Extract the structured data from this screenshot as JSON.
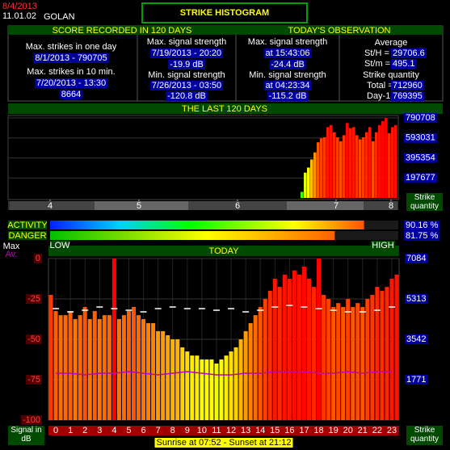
{
  "header": {
    "date": "8/4/2013",
    "version": "11.01.02",
    "station": "GOLAN",
    "title": "STRIKE HISTOGRAM"
  },
  "score_120_days": {
    "heading": "SCORE RECORDED IN 120 DAYS",
    "max_strikes_day": {
      "label": "Max. strikes in one day",
      "value": "8/1/2013 - 790705"
    },
    "max_strikes_10min": {
      "label": "Max. strikes in 10 min.",
      "when": "7/20/2013 - 13:30",
      "value": "8664"
    },
    "max_signal": {
      "label": "Max. signal strength",
      "when": "7/19/2013 - 20:20",
      "value": "-19.9 dB"
    },
    "min_signal": {
      "label": "Min. signal strength",
      "when": "7/26/2013 - 03:50",
      "value": "-120.8 dB"
    }
  },
  "today_observation": {
    "heading": "TODAY'S OBSERVATION",
    "max_signal": {
      "label": "Max. signal strength",
      "when": "at 15:43:06",
      "value": "-24.4 dB"
    },
    "min_signal": {
      "label": "Min. signal strength",
      "when": "at 04:23:34",
      "value": "-115.2 dB"
    },
    "average": {
      "label": "Average",
      "per_hour_label": "St/H =",
      "per_hour": "29706.6",
      "per_min_label": "St/m =",
      "per_min": "495.1"
    },
    "quantity": {
      "label": "Strike quantity",
      "total_label": "Total  =",
      "total": "712960",
      "day1_label": "Day-1=",
      "day1": "769395"
    }
  },
  "levels": {
    "xlim": [
      0,
      100
    ],
    "low": "LOW",
    "high": "HIGH",
    "items": [
      {
        "name": "ACTIVITY",
        "value": 90.16,
        "value_label": "90.16 %"
      },
      {
        "name": "DANGER",
        "value": 81.75,
        "value_label": "81.75 %"
      }
    ]
  },
  "sun": "Sunrise at 07:52  -  Sunset at 21:12",
  "chart_data": [
    {
      "type": "bar",
      "title": "THE LAST 120 DAYS",
      "y_axis_label": "Strike quantity",
      "grid": true,
      "x": [
        90,
        91,
        92,
        93,
        94,
        95,
        96,
        97,
        98,
        99,
        100,
        101,
        102,
        103,
        104,
        105,
        106,
        107,
        108,
        109,
        110,
        111,
        112,
        113,
        114,
        115,
        116,
        117,
        118,
        119
      ],
      "values": [
        60000,
        250000,
        300000,
        380000,
        450000,
        550000,
        590000,
        600000,
        700000,
        720000,
        650000,
        600000,
        560000,
        620000,
        740000,
        690000,
        700000,
        620000,
        580000,
        600000,
        650000,
        700000,
        560000,
        650000,
        720000,
        760000,
        790705,
        640000,
        700000,
        720000
      ],
      "xlim": [
        0,
        120
      ],
      "xticks": [
        {
          "value": 12.5,
          "label": "4"
        },
        {
          "value": 40,
          "label": "5"
        },
        {
          "value": 70.5,
          "label": "6"
        },
        {
          "value": 101,
          "label": "7"
        },
        {
          "value": 118,
          "label": "8"
        }
      ],
      "ylim": [
        0,
        790708
      ],
      "yticks": [
        197677,
        395354,
        593031,
        790708
      ]
    },
    {
      "type": "bar",
      "title": "TODAY",
      "y_axis_label": "Signal in dB",
      "y2_axis_label": "Strike quantity",
      "grid": true,
      "xlim": [
        0,
        1440
      ],
      "xticks": [
        {
          "value": 30,
          "label": "0"
        },
        {
          "value": 90,
          "label": "1"
        },
        {
          "value": 150,
          "label": "2"
        },
        {
          "value": 210,
          "label": "3"
        },
        {
          "value": 270,
          "label": "4"
        },
        {
          "value": 330,
          "label": "5"
        },
        {
          "value": 390,
          "label": "6"
        },
        {
          "value": 450,
          "label": "7"
        },
        {
          "value": 510,
          "label": "8"
        },
        {
          "value": 570,
          "label": "9"
        },
        {
          "value": 630,
          "label": "10"
        },
        {
          "value": 690,
          "label": "11"
        },
        {
          "value": 750,
          "label": "12"
        },
        {
          "value": 810,
          "label": "13"
        },
        {
          "value": 870,
          "label": "14"
        },
        {
          "value": 930,
          "label": "15"
        },
        {
          "value": 990,
          "label": "16"
        },
        {
          "value": 1050,
          "label": "17"
        },
        {
          "value": 1110,
          "label": "18"
        },
        {
          "value": 1170,
          "label": "19"
        },
        {
          "value": 1230,
          "label": "20"
        },
        {
          "value": 1290,
          "label": "21"
        },
        {
          "value": 1350,
          "label": "22"
        },
        {
          "value": 1410,
          "label": "23"
        }
      ],
      "ylim": [
        -100,
        0
      ],
      "yticks": [
        0,
        -25,
        -50,
        -75,
        -100
      ],
      "y2lim": [
        0,
        7084
      ],
      "y2ticks": [
        1771,
        3542,
        5313,
        7084
      ],
      "series": [
        {
          "axis": "y2",
          "x": [
            0,
            20,
            40,
            60,
            80,
            100,
            120,
            140,
            160,
            180,
            200,
            220,
            240,
            260,
            280,
            300,
            320,
            340,
            360,
            380,
            400,
            420,
            440,
            460,
            480,
            500,
            520,
            540,
            560,
            580,
            600,
            620,
            640,
            660,
            680,
            700,
            720,
            740,
            760,
            780,
            800,
            820,
            840,
            860,
            880,
            900,
            920,
            940,
            960,
            980,
            1000,
            1020,
            1040,
            1060,
            1080,
            1100,
            1120,
            1140,
            1160,
            1180,
            1200,
            1220,
            1240,
            1260,
            1280,
            1300,
            1320,
            1340,
            1360,
            1380,
            1400,
            1420
          ],
          "values": [
            5490,
            4780,
            4600,
            4600,
            4780,
            4430,
            4600,
            4960,
            4430,
            4780,
            4430,
            4600,
            4600,
            7084,
            4430,
            4600,
            4780,
            4960,
            4600,
            4430,
            4250,
            4250,
            3900,
            3900,
            3720,
            3540,
            3540,
            3190,
            3010,
            2830,
            2830,
            2660,
            2660,
            2660,
            2480,
            2660,
            2830,
            3010,
            3190,
            3540,
            3900,
            4250,
            4600,
            4960,
            5310,
            5670,
            6200,
            5840,
            6380,
            6200,
            6560,
            6380,
            6730,
            6200,
            5840,
            7084,
            5490,
            5310,
            4960,
            5130,
            4960,
            5310,
            4960,
            5130,
            4960,
            5310,
            5490,
            5840,
            5670,
            5840,
            6200,
            6380
          ]
        },
        {
          "name": "Max",
          "color": "#ffffff",
          "marker": "dash",
          "x": [
            30,
            90,
            150,
            210,
            270,
            330,
            390,
            450,
            510,
            570,
            630,
            690,
            750,
            810,
            870,
            930,
            990,
            1050,
            1110,
            1170,
            1230,
            1290,
            1350,
            1410
          ],
          "values": [
            -31,
            -33,
            -32,
            -30,
            -31,
            -32,
            -33,
            -31,
            -30,
            -31,
            -31,
            -32,
            -31,
            -33,
            -32,
            -30,
            -29,
            -30,
            -31,
            -32,
            -33,
            -33,
            -32,
            -30
          ]
        },
        {
          "name": "Av.",
          "color": "#c000c0",
          "marker": "line",
          "x": [
            30,
            90,
            150,
            210,
            270,
            330,
            390,
            450,
            510,
            570,
            630,
            690,
            750,
            810,
            870,
            930,
            990,
            1050,
            1110,
            1170,
            1230,
            1290,
            1350,
            1410
          ],
          "values": [
            -71,
            -71,
            -72,
            -71,
            -71,
            -70,
            -71,
            -72,
            -71,
            -70,
            -71,
            -72,
            -72,
            -71,
            -71,
            -70,
            -70,
            -70,
            -71,
            -71,
            -70,
            -71,
            -70,
            -70
          ]
        }
      ]
    }
  ]
}
